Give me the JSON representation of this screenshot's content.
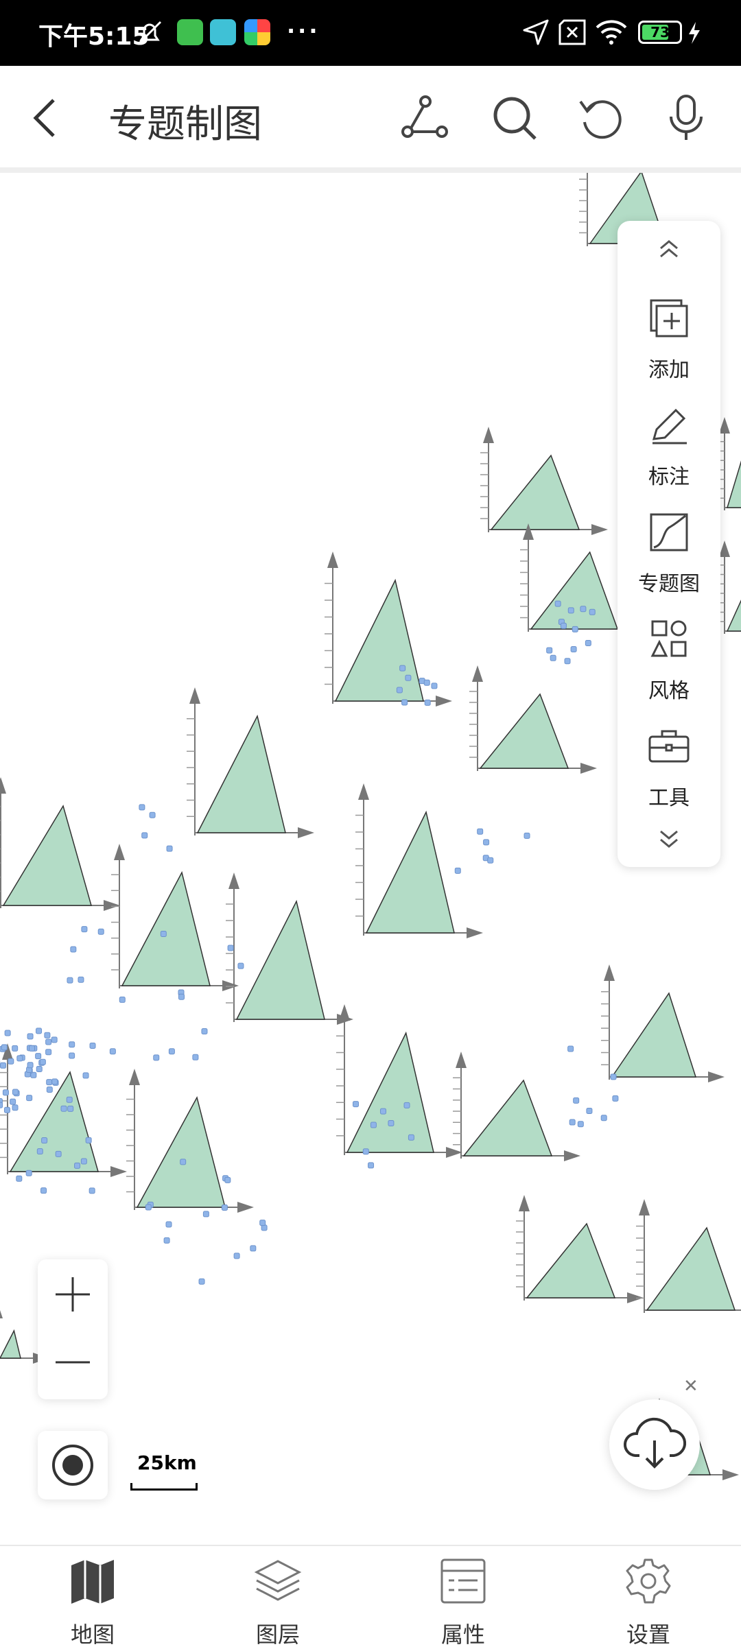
{
  "status_bar": {
    "time": "下午5:15",
    "more": "···",
    "battery": "73",
    "battery_level": 0.73
  },
  "app_bar": {
    "title": "专题制图"
  },
  "tool_panel": {
    "items": [
      {
        "label": "添加",
        "icon": "add-layer-icon"
      },
      {
        "label": "标注",
        "icon": "pen-icon"
      },
      {
        "label": "专题图",
        "icon": "thematic-map-icon"
      },
      {
        "label": "风格",
        "icon": "shapes-icon"
      },
      {
        "label": "工具",
        "icon": "toolbox-icon"
      }
    ]
  },
  "map": {
    "scale": "25km"
  },
  "bottom_nav": {
    "items": [
      {
        "label": "地图",
        "icon": "map-icon"
      },
      {
        "label": "图层",
        "icon": "layers-icon"
      },
      {
        "label": "属性",
        "icon": "attributes-icon"
      },
      {
        "label": "设置",
        "icon": "gear-icon"
      }
    ]
  },
  "colors": {
    "triangle_fill": "#b3dcc6",
    "point_fill": "#8fb4e8",
    "axis": "#777777"
  }
}
